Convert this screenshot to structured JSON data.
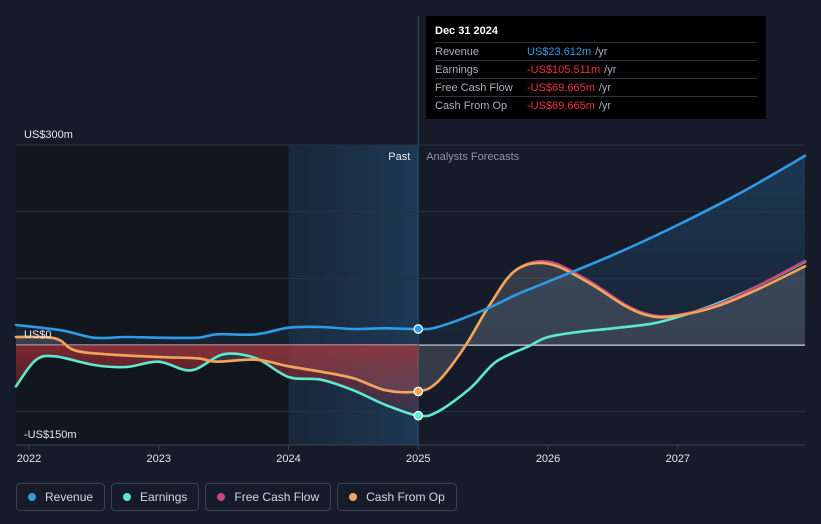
{
  "colors": {
    "revenue": "#2d9be6",
    "earnings": "#5ee8cc",
    "free_cash_flow": "#c8467c",
    "cash_from_op": "#efa55a",
    "negative_fill": "#a22d35",
    "background": "#151b28"
  },
  "tooltip": {
    "date": "Dec 31 2024",
    "unit": "/yr",
    "rows": [
      {
        "label": "Revenue",
        "value": "US$23.612m",
        "color": "#2d9be6"
      },
      {
        "label": "Earnings",
        "value": "-US$105.511m",
        "color": "#e6353c"
      },
      {
        "label": "Free Cash Flow",
        "value": "-US$69.665m",
        "color": "#e6353c"
      },
      {
        "label": "Cash From Op",
        "value": "-US$69.665m",
        "color": "#e6353c"
      }
    ]
  },
  "legend": [
    {
      "label": "Revenue",
      "color": "#2d9be6"
    },
    {
      "label": "Earnings",
      "color": "#5ee8cc"
    },
    {
      "label": "Free Cash Flow",
      "color": "#c8467c"
    },
    {
      "label": "Cash From Op",
      "color": "#efa55a"
    }
  ],
  "chart_data": {
    "type": "line",
    "title": "",
    "xlabel": "",
    "ylabel": "",
    "x_unit": "year",
    "xlim": [
      2021.9,
      2027.98
    ],
    "ylim": [
      -150,
      300
    ],
    "y_tick_labels": [
      "US$300m",
      "US$0",
      "-US$150m"
    ],
    "y_tick_values": [
      300,
      0,
      -150
    ],
    "x_tick_values": [
      2022,
      2023,
      2024,
      2025,
      2026,
      2027
    ],
    "x_tick_labels": [
      "2022",
      "2023",
      "2024",
      "2025",
      "2026",
      "2027"
    ],
    "divider_x": 2025.0,
    "past_region_start": 2024.0,
    "past_label": "Past",
    "forecast_label": "Analysts Forecasts",
    "series": [
      {
        "name": "Revenue",
        "points": [
          [
            2021.9,
            30
          ],
          [
            2022.25,
            22
          ],
          [
            2022.5,
            11
          ],
          [
            2022.75,
            12
          ],
          [
            2023.0,
            11
          ],
          [
            2023.3,
            11
          ],
          [
            2023.45,
            16
          ],
          [
            2023.75,
            16
          ],
          [
            2024.0,
            26
          ],
          [
            2024.25,
            27
          ],
          [
            2024.5,
            24
          ],
          [
            2024.75,
            25
          ],
          [
            2025.0,
            24
          ],
          [
            2025.15,
            27
          ],
          [
            2025.5,
            52
          ],
          [
            2025.75,
            75
          ],
          [
            2026.0,
            95
          ],
          [
            2026.5,
            135
          ],
          [
            2027.0,
            180
          ],
          [
            2027.5,
            230
          ],
          [
            2027.98,
            284
          ]
        ]
      },
      {
        "name": "Earnings",
        "points": [
          [
            2021.9,
            -62
          ],
          [
            2022.05,
            -23
          ],
          [
            2022.2,
            -17
          ],
          [
            2022.5,
            -30
          ],
          [
            2022.75,
            -33
          ],
          [
            2023.0,
            -25
          ],
          [
            2023.25,
            -38
          ],
          [
            2023.5,
            -14
          ],
          [
            2023.75,
            -20
          ],
          [
            2024.0,
            -48
          ],
          [
            2024.25,
            -52
          ],
          [
            2024.5,
            -68
          ],
          [
            2024.75,
            -90
          ],
          [
            2025.0,
            -106
          ],
          [
            2025.15,
            -100
          ],
          [
            2025.4,
            -65
          ],
          [
            2025.6,
            -25
          ],
          [
            2025.85,
            -2
          ],
          [
            2026.0,
            12
          ],
          [
            2026.25,
            20
          ],
          [
            2026.5,
            25
          ],
          [
            2026.8,
            32
          ],
          [
            2027.0,
            42
          ],
          [
            2027.3,
            62
          ],
          [
            2027.6,
            87
          ],
          [
            2027.98,
            125
          ]
        ]
      },
      {
        "name": "Free Cash Flow",
        "points": [
          [
            2021.9,
            12
          ],
          [
            2022.2,
            10
          ],
          [
            2022.35,
            -8
          ],
          [
            2022.6,
            -14
          ],
          [
            2023.0,
            -18
          ],
          [
            2023.3,
            -20
          ],
          [
            2023.45,
            -25
          ],
          [
            2023.75,
            -22
          ],
          [
            2024.0,
            -32
          ],
          [
            2024.25,
            -40
          ],
          [
            2024.5,
            -50
          ],
          [
            2024.75,
            -68
          ],
          [
            2025.0,
            -69.7
          ],
          [
            2025.15,
            -55
          ],
          [
            2025.35,
            -5
          ],
          [
            2025.55,
            60
          ],
          [
            2025.75,
            112
          ],
          [
            2026.0,
            125
          ],
          [
            2026.3,
            98
          ],
          [
            2026.6,
            60
          ],
          [
            2026.8,
            45
          ],
          [
            2027.0,
            45
          ],
          [
            2027.3,
            60
          ],
          [
            2027.6,
            87
          ],
          [
            2027.98,
            126
          ]
        ]
      },
      {
        "name": "Cash From Op",
        "points": [
          [
            2021.9,
            12
          ],
          [
            2022.2,
            10
          ],
          [
            2022.35,
            -8
          ],
          [
            2022.6,
            -14
          ],
          [
            2023.0,
            -18
          ],
          [
            2023.3,
            -20
          ],
          [
            2023.45,
            -25
          ],
          [
            2023.75,
            -22
          ],
          [
            2024.0,
            -32
          ],
          [
            2024.25,
            -40
          ],
          [
            2024.5,
            -50
          ],
          [
            2024.75,
            -68
          ],
          [
            2025.0,
            -69.7
          ],
          [
            2025.15,
            -55
          ],
          [
            2025.35,
            -5
          ],
          [
            2025.55,
            60
          ],
          [
            2025.75,
            112
          ],
          [
            2026.0,
            122
          ],
          [
            2026.3,
            95
          ],
          [
            2026.6,
            58
          ],
          [
            2026.8,
            43
          ],
          [
            2027.0,
            44
          ],
          [
            2027.3,
            58
          ],
          [
            2027.6,
            82
          ],
          [
            2027.98,
            118
          ]
        ]
      }
    ],
    "highlight_x": 2025.0
  }
}
